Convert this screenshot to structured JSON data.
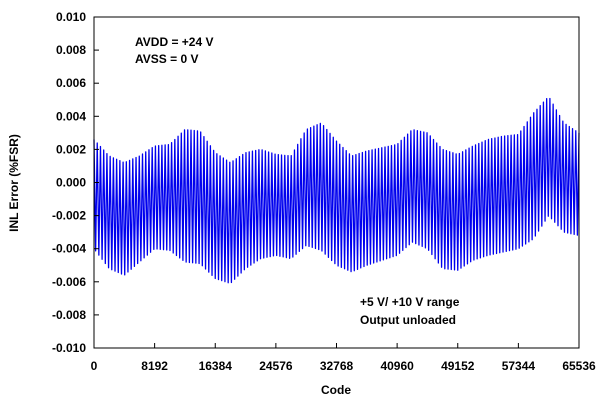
{
  "chart_data": {
    "type": "line",
    "title": "",
    "xlabel": "Code",
    "ylabel": "INL Error (%FSR)",
    "xlim": [
      0,
      65536
    ],
    "ylim": [
      -0.01,
      0.01
    ],
    "x_ticks": [
      0,
      8192,
      16384,
      24576,
      32768,
      40960,
      49152,
      57344,
      65536
    ],
    "x_tick_labels": [
      "0",
      "8192",
      "16384",
      "24576",
      "32768",
      "40960",
      "49152",
      "57344",
      "65536"
    ],
    "y_ticks": [
      0.01,
      0.008,
      0.006,
      0.004,
      0.002,
      0.0,
      -0.002,
      -0.004,
      -0.006,
      -0.008,
      -0.01
    ],
    "y_tick_labels": [
      "0.010",
      "0.008",
      "0.006",
      "0.004",
      "0.002",
      "0.000",
      "-0.002",
      "-0.004",
      "-0.006",
      "-0.008",
      "-0.010"
    ],
    "grid": false,
    "color": "#0000ee",
    "envelope": {
      "x": [
        0,
        2048,
        4096,
        6144,
        8192,
        10240,
        12288,
        14336,
        16384,
        18432,
        20480,
        22528,
        24576,
        26624,
        28672,
        30720,
        32768,
        34816,
        36864,
        38912,
        40960,
        43008,
        45056,
        47104,
        49152,
        51200,
        53248,
        55296,
        57344,
        59392,
        61440,
        63488,
        65536
      ],
      "upper": [
        0.0026,
        0.0016,
        0.0012,
        0.0016,
        0.0022,
        0.0023,
        0.0032,
        0.0031,
        0.0018,
        0.0012,
        0.0018,
        0.002,
        0.0017,
        0.0016,
        0.0032,
        0.0036,
        0.0025,
        0.0016,
        0.0019,
        0.0021,
        0.0023,
        0.0032,
        0.003,
        0.002,
        0.0017,
        0.0022,
        0.0026,
        0.0028,
        0.0029,
        0.0042,
        0.0052,
        0.0036,
        0.003
      ],
      "lower": [
        -0.004,
        -0.0052,
        -0.0056,
        -0.0048,
        -0.004,
        -0.0041,
        -0.0048,
        -0.0049,
        -0.0058,
        -0.0061,
        -0.0052,
        -0.0046,
        -0.0044,
        -0.0046,
        -0.0038,
        -0.0041,
        -0.005,
        -0.0054,
        -0.005,
        -0.0047,
        -0.0044,
        -0.0036,
        -0.004,
        -0.0052,
        -0.0053,
        -0.0047,
        -0.0044,
        -0.0042,
        -0.004,
        -0.0034,
        -0.002,
        -0.003,
        -0.0032
      ]
    },
    "annotations": [
      {
        "id": "avdd",
        "text": "AVDD = +24 V"
      },
      {
        "id": "avss",
        "text": "AVSS = 0 V"
      },
      {
        "id": "range",
        "text": "+5 V/ +10 V range"
      },
      {
        "id": "load",
        "text": "Output unloaded"
      }
    ]
  }
}
